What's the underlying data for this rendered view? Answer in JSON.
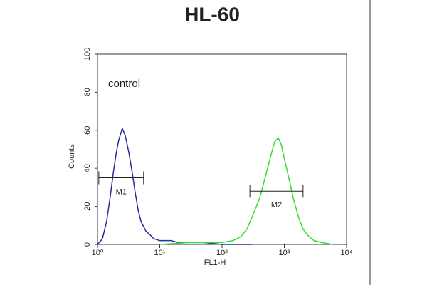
{
  "chart_data": {
    "type": "histogram-overlay",
    "title": "HL-60",
    "xlabel": "FL1-H",
    "ylabel": "Counts",
    "annotation": "control",
    "xscale": "log",
    "xlim": [
      1,
      10000
    ],
    "xticks": [
      {
        "value": 1,
        "label": "10⁰"
      },
      {
        "value": 10,
        "label": "10¹"
      },
      {
        "value": 100,
        "label": "10²"
      },
      {
        "value": 1000,
        "label": "10³"
      },
      {
        "value": 10000,
        "label": "10⁴"
      }
    ],
    "ylim": [
      0,
      100
    ],
    "yticks": [
      0,
      20,
      40,
      60,
      80,
      100
    ],
    "series": [
      {
        "color": "#2a2a9a",
        "x": [
          1.0,
          1.2,
          1.4,
          1.6,
          1.8,
          2.0,
          2.2,
          2.5,
          2.8,
          3.2,
          3.6,
          4.0,
          4.5,
          5.0,
          6,
          7,
          8,
          10,
          15,
          20,
          30,
          50,
          100,
          300
        ],
        "values": [
          0,
          3,
          12,
          25,
          38,
          48,
          55,
          61,
          57,
          48,
          38,
          28,
          18,
          12,
          7,
          5,
          3,
          2,
          2,
          1,
          1,
          1,
          0,
          0
        ]
      },
      {
        "color": "#33dd33",
        "x": [
          10,
          30,
          100,
          150,
          200,
          250,
          300,
          400,
          500,
          600,
          700,
          800,
          900,
          1000,
          1200,
          1400,
          1700,
          2000,
          2500,
          3000,
          4000,
          6000
        ],
        "values": [
          0,
          1,
          1,
          2,
          4,
          8,
          14,
          24,
          36,
          46,
          54,
          56,
          52,
          45,
          34,
          24,
          14,
          8,
          4,
          2,
          1,
          0
        ]
      }
    ],
    "markers": [
      {
        "label": "M1",
        "range": [
          1.05,
          5.5
        ],
        "y": 35
      },
      {
        "label": "M2",
        "range": [
          280,
          2000
        ],
        "y": 28
      }
    ]
  }
}
